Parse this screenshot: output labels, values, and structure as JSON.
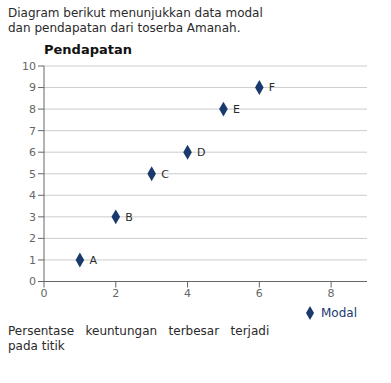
{
  "chart_data": {
    "type": "scatter",
    "title": "Pendapatan",
    "subtitle": [
      "Diagram berikut menunjukkan data modal",
      "dan pendapatan dari toserba Amanah."
    ],
    "annotations": [
      "Persentase   keuntungan   terbesar   terjadi",
      "pada titik"
    ],
    "x": [
      1,
      2,
      3,
      4,
      5,
      6
    ],
    "labels": [
      "A",
      "B",
      "C",
      "D",
      "E",
      "F"
    ],
    "series": [
      {
        "name": "Modal",
        "color": "#1a3a6e",
        "marker": "diamond",
        "values": [
          1,
          3,
          5,
          6,
          8,
          9
        ]
      }
    ],
    "xlim": [
      0,
      9
    ],
    "ylim": [
      0,
      10
    ],
    "xticks": [
      0,
      2,
      4,
      6,
      8
    ],
    "yticks": [
      0,
      1,
      2,
      3,
      4,
      5,
      6,
      7,
      8,
      9,
      10
    ],
    "grid": true,
    "legend": "bottom right"
  }
}
